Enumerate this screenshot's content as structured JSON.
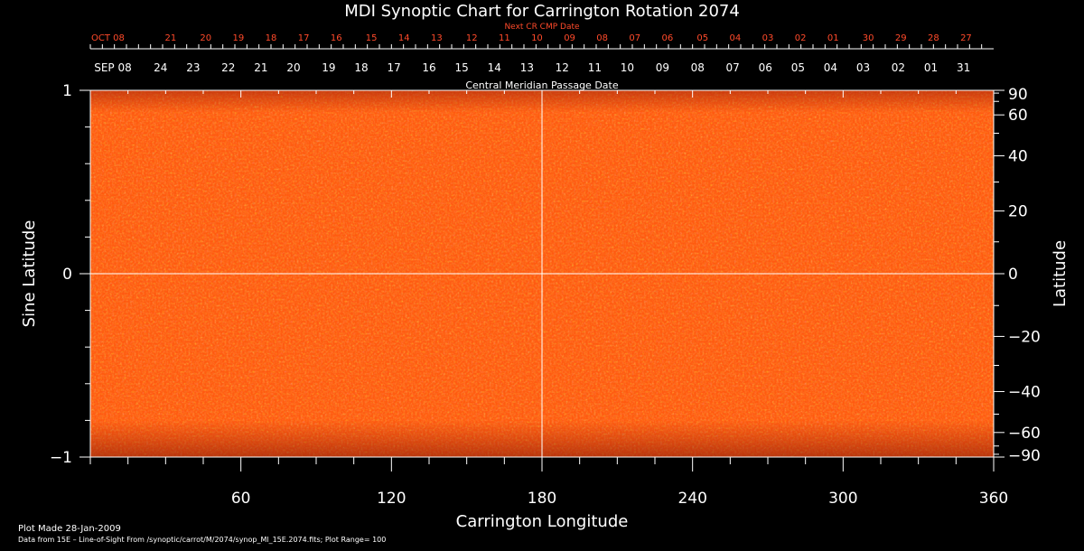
{
  "chart_data": {
    "type": "heatmap",
    "title": "MDI Synoptic Chart for Carrington Rotation 2074",
    "xlabel": "Carrington Longitude",
    "ylabel_left": "Sine Latitude",
    "ylabel_right": "Latitude",
    "xlim": [
      0,
      360
    ],
    "ylim": [
      -1,
      1
    ],
    "x_ticks": [
      60,
      120,
      180,
      240,
      300,
      360
    ],
    "x_minor_step": 15,
    "y_left_ticks": [
      {
        "value": 1,
        "label": "1"
      },
      {
        "value": 0,
        "label": "0"
      },
      {
        "value": -1,
        "label": "−1"
      }
    ],
    "y_left_minor_step": 0.2,
    "y_right_ticks": [
      {
        "lat": 90,
        "label": "90"
      },
      {
        "lat": 60,
        "label": "60"
      },
      {
        "lat": 40,
        "label": "40"
      },
      {
        "lat": 20,
        "label": "20"
      },
      {
        "lat": 0,
        "label": "0"
      },
      {
        "lat": -20,
        "label": "−20"
      },
      {
        "lat": -40,
        "label": "−40"
      },
      {
        "lat": -60,
        "label": "−60"
      },
      {
        "lat": -90,
        "label": "−90"
      }
    ],
    "y_right_minor_lats": [
      80,
      70,
      50,
      30,
      10,
      -10,
      -30,
      -50,
      -70,
      -80
    ],
    "grid_lines": {
      "x": [
        180
      ],
      "y": [
        0
      ]
    },
    "top_axis_title": "Next CR CMP Date",
    "top_axis_labels": [
      {
        "lon": 7,
        "label": "OCT 08"
      },
      {
        "lon": 32,
        "label": "21"
      },
      {
        "lon": 46,
        "label": "20"
      },
      {
        "lon": 59,
        "label": "19"
      },
      {
        "lon": 72,
        "label": "18"
      },
      {
        "lon": 85,
        "label": "17"
      },
      {
        "lon": 98,
        "label": "16"
      },
      {
        "lon": 112,
        "label": "15"
      },
      {
        "lon": 125,
        "label": "14"
      },
      {
        "lon": 138,
        "label": "13"
      },
      {
        "lon": 152,
        "label": "12"
      },
      {
        "lon": 165,
        "label": "11"
      },
      {
        "lon": 178,
        "label": "10"
      },
      {
        "lon": 191,
        "label": "09"
      },
      {
        "lon": 204,
        "label": "08"
      },
      {
        "lon": 217,
        "label": "07"
      },
      {
        "lon": 230,
        "label": "06"
      },
      {
        "lon": 244,
        "label": "05"
      },
      {
        "lon": 257,
        "label": "04"
      },
      {
        "lon": 270,
        "label": "03"
      },
      {
        "lon": 283,
        "label": "02"
      },
      {
        "lon": 296,
        "label": "01"
      },
      {
        "lon": 310,
        "label": "30"
      },
      {
        "lon": 323,
        "label": "29"
      },
      {
        "lon": 336,
        "label": "28"
      },
      {
        "lon": 349,
        "label": "27"
      }
    ],
    "bottom_date_title": "Central Meridian Passage Date",
    "bottom_date_labels": [
      {
        "lon": 9,
        "label": "SEP 08"
      },
      {
        "lon": 28,
        "label": "24"
      },
      {
        "lon": 41,
        "label": "23"
      },
      {
        "lon": 55,
        "label": "22"
      },
      {
        "lon": 68,
        "label": "21"
      },
      {
        "lon": 81,
        "label": "20"
      },
      {
        "lon": 95,
        "label": "19"
      },
      {
        "lon": 108,
        "label": "18"
      },
      {
        "lon": 121,
        "label": "17"
      },
      {
        "lon": 135,
        "label": "16"
      },
      {
        "lon": 148,
        "label": "15"
      },
      {
        "lon": 161,
        "label": "14"
      },
      {
        "lon": 174,
        "label": "13"
      },
      {
        "lon": 188,
        "label": "12"
      },
      {
        "lon": 201,
        "label": "11"
      },
      {
        "lon": 214,
        "label": "10"
      },
      {
        "lon": 228,
        "label": "09"
      },
      {
        "lon": 242,
        "label": "08"
      },
      {
        "lon": 256,
        "label": "07"
      },
      {
        "lon": 269,
        "label": "06"
      },
      {
        "lon": 282,
        "label": "05"
      },
      {
        "lon": 295,
        "label": "04"
      },
      {
        "lon": 308,
        "label": "03"
      },
      {
        "lon": 322,
        "label": "02"
      },
      {
        "lon": 335,
        "label": "01"
      },
      {
        "lon": 348,
        "label": "31"
      }
    ],
    "colors": {
      "background": "#000000",
      "axes": "#ffffff",
      "top_dates": "#ff4a2a",
      "field_base": "#ff5a10",
      "field_dark": "#c02a08",
      "field_bright": "#ffb040",
      "field_hot": "#ffe070",
      "field_negative": "#5a0a3a"
    },
    "plot_range": 100
  },
  "footer": {
    "plot_made": "Plot Made 28-Jan-2009",
    "data_source": "Data from 15E – Line-of-Sight From /synoptic/carrot/M/2074/synop_Ml_15E.2074.fits; Plot Range= 100"
  }
}
